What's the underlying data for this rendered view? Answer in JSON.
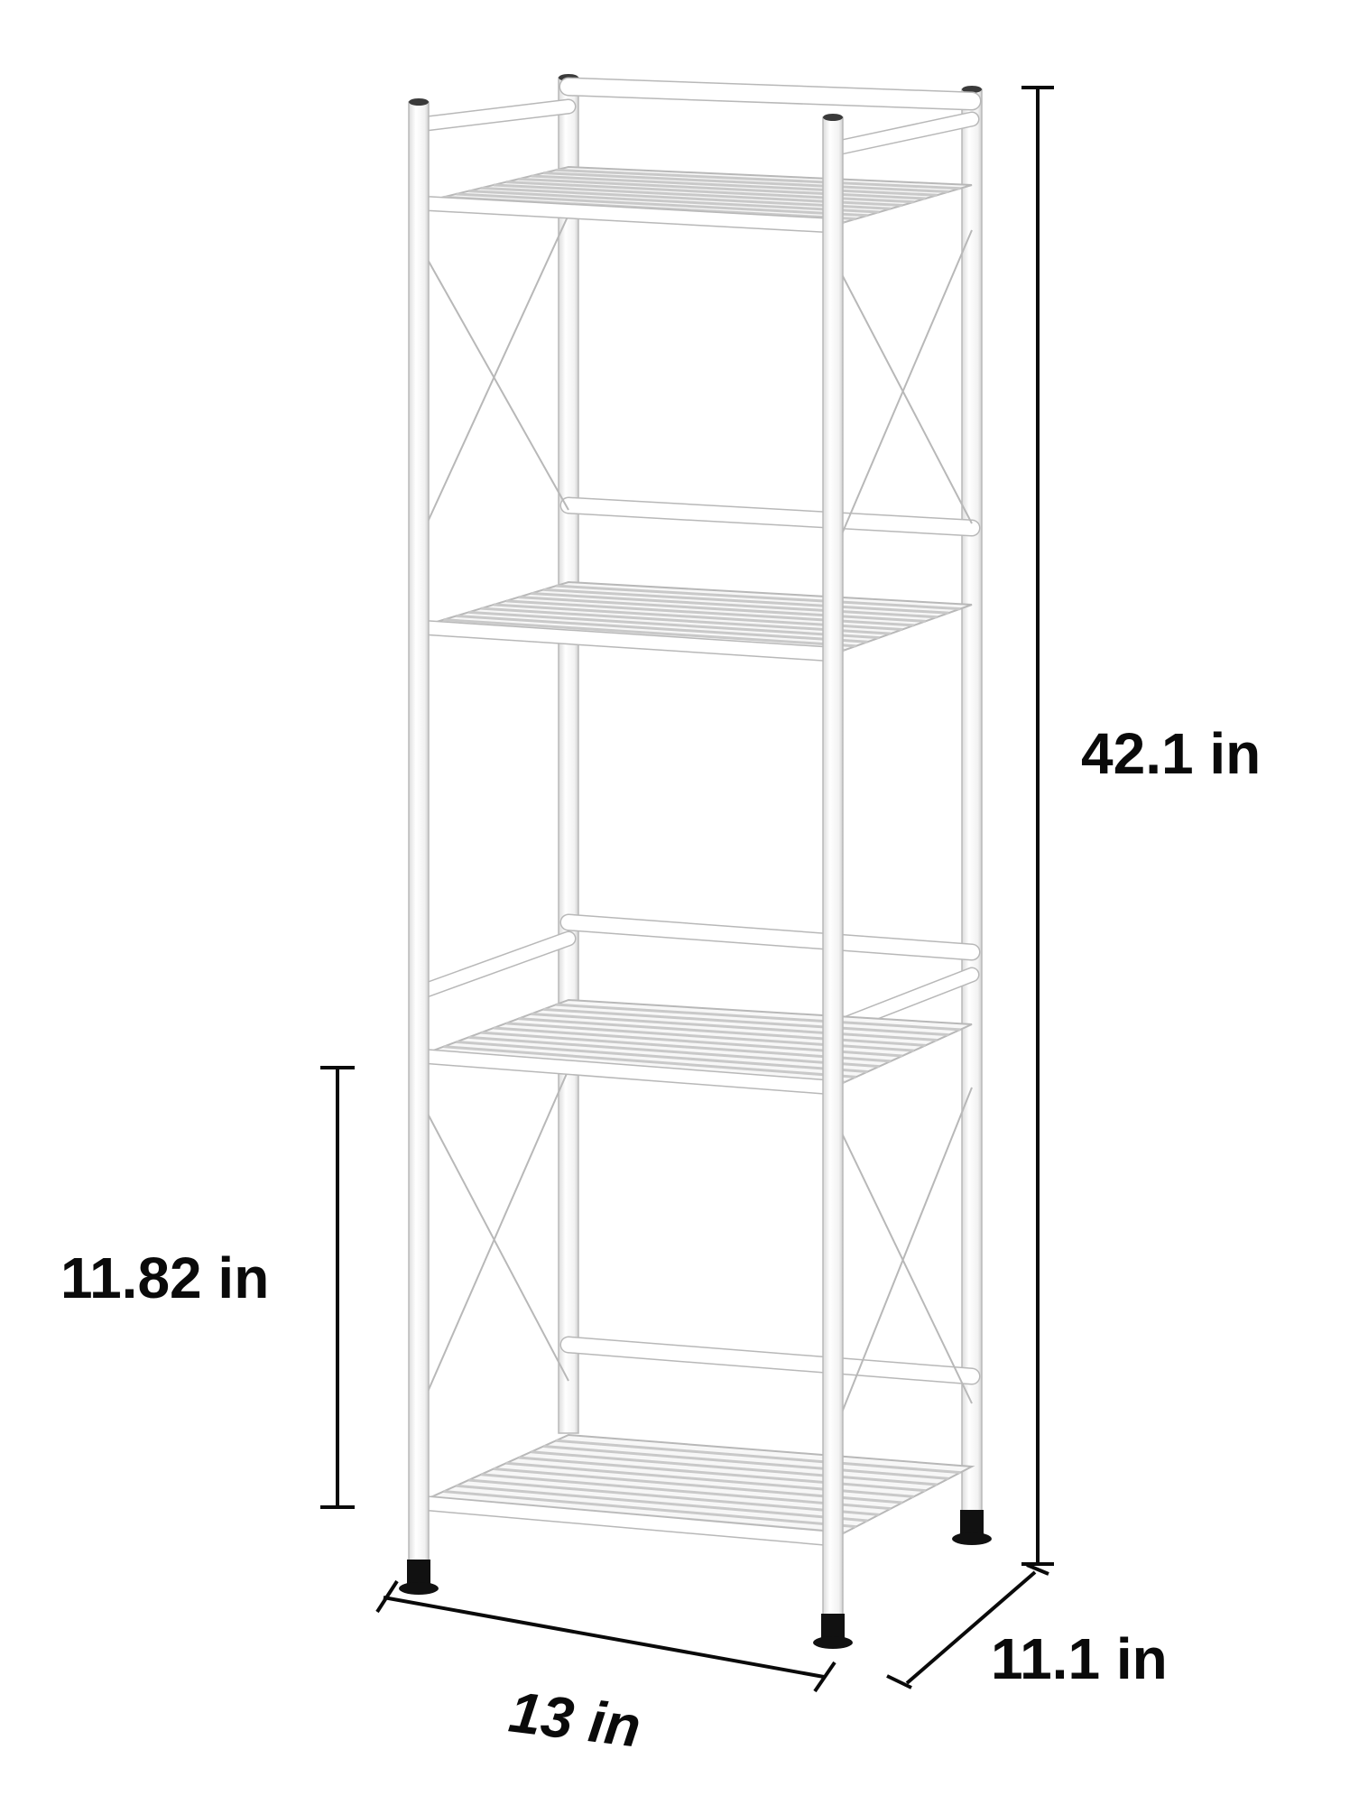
{
  "product": {
    "name": "4-tier white metal shelving unit",
    "color": "#ffffff",
    "outline_color": "#b8b8b8",
    "feet_color": "#111111",
    "tiers": 4
  },
  "dimensions": {
    "height": "42.1 in",
    "width": "13 in",
    "depth": "11.1 in",
    "shelf_gap": "11.82 in"
  },
  "annotation_color": "#0a0a0a"
}
